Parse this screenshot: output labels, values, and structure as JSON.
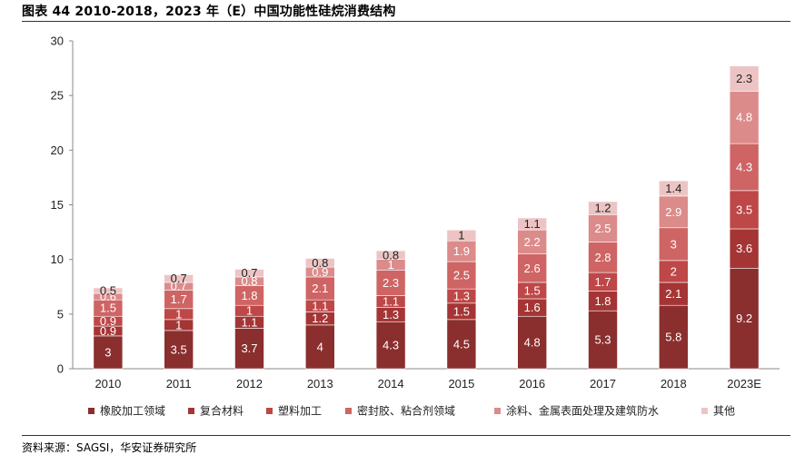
{
  "header": {
    "title": "图表 44 2010-2018，2023 年（E）中国功能性硅烷消费结构"
  },
  "footer": {
    "source": "资料来源：SAGSI，华安证券研究所"
  },
  "chart_data": {
    "type": "bar",
    "stacked": true,
    "categories": [
      "2010",
      "2011",
      "2012",
      "2013",
      "2014",
      "2015",
      "2016",
      "2017",
      "2018",
      "2023E"
    ],
    "ylim": [
      0,
      30
    ],
    "yticks": [
      0,
      5,
      10,
      15,
      20,
      25,
      30
    ],
    "grid": false,
    "legend_position": "bottom",
    "series": [
      {
        "name": "橡胶加工领域",
        "color": "#8B2E2E",
        "label_color": "#ffffff",
        "values": [
          3,
          3.5,
          3.7,
          4,
          4.3,
          4.5,
          4.8,
          5.3,
          5.8,
          9.2
        ]
      },
      {
        "name": "复合材料",
        "color": "#A53535",
        "label_color": "#ffffff",
        "values": [
          0.9,
          1,
          1.1,
          1.2,
          1.3,
          1.5,
          1.6,
          1.8,
          2.1,
          3.6
        ]
      },
      {
        "name": "塑料加工",
        "color": "#BE4747",
        "label_color": "#ffffff",
        "values": [
          0.9,
          1,
          1,
          1.1,
          1.1,
          1.3,
          1.5,
          1.7,
          2,
          3.5
        ]
      },
      {
        "name": "密封胶、粘合剂领域",
        "color": "#CF6464",
        "label_color": "#ffffff",
        "values": [
          1.5,
          1.7,
          1.8,
          2.1,
          2.3,
          2.5,
          2.6,
          2.8,
          3,
          4.3
        ]
      },
      {
        "name": "涂料、金属表面处理及建筑防水",
        "color": "#DC8B8B",
        "label_color": "#ffffff",
        "values": [
          0.6,
          0.7,
          0.8,
          0.9,
          1,
          1.9,
          2.2,
          2.5,
          2.9,
          4.8
        ]
      },
      {
        "name": "其他",
        "color": "#EDC4C4",
        "label_color": "#222222",
        "values": [
          0.5,
          0.7,
          0.7,
          0.8,
          0.8,
          1,
          1.1,
          1.2,
          1.4,
          2.3
        ]
      }
    ]
  }
}
